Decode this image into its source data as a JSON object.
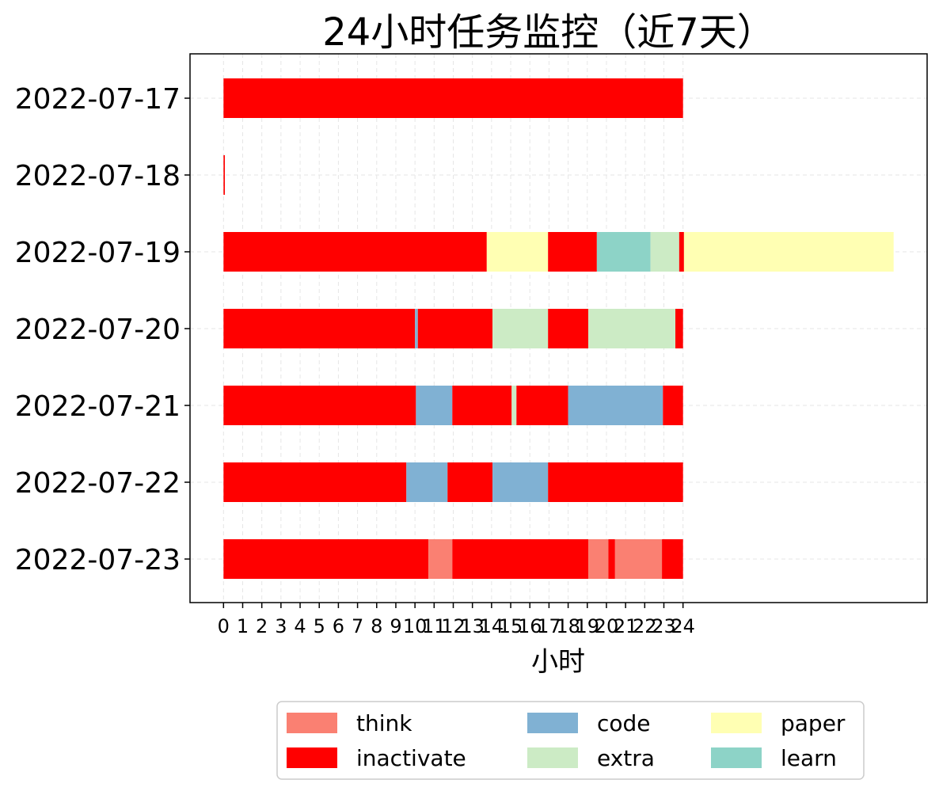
{
  "chart_data": {
    "type": "bar",
    "orientation": "horizontal-stacked",
    "title": "24小时任务监控（近7天）",
    "xlabel": "小时",
    "ylabel": "",
    "xlim": [
      -1.75,
      36.75
    ],
    "xticks": [
      0,
      1,
      2,
      3,
      4,
      5,
      6,
      7,
      8,
      9,
      10,
      11,
      12,
      13,
      14,
      15,
      16,
      17,
      18,
      19,
      20,
      21,
      22,
      23,
      24
    ],
    "grid": true,
    "legend_position": "bottom-center, 3 columns",
    "categories": [
      "2022-07-17",
      "2022-07-18",
      "2022-07-19",
      "2022-07-20",
      "2022-07-21",
      "2022-07-22",
      "2022-07-23"
    ],
    "legend": [
      {
        "name": "think",
        "color": "#fa8072"
      },
      {
        "name": "code",
        "color": "#80b1d3"
      },
      {
        "name": "paper",
        "color": "#ffffb3"
      },
      {
        "name": "inactivate",
        "color": "#ff0000"
      },
      {
        "name": "extra",
        "color": "#ccebc5"
      },
      {
        "name": "learn",
        "color": "#8dd3c7"
      }
    ],
    "rows": [
      {
        "date": "2022-07-17",
        "segments": [
          {
            "type": "inactivate",
            "start": 0,
            "end": 24
          }
        ]
      },
      {
        "date": "2022-07-18",
        "segments": [
          {
            "type": "inactivate",
            "start": 0,
            "end": 0.07
          }
        ]
      },
      {
        "date": "2022-07-19",
        "segments": [
          {
            "type": "inactivate",
            "start": 0,
            "end": 13.75
          },
          {
            "type": "paper",
            "start": 13.75,
            "end": 16.95
          },
          {
            "type": "inactivate",
            "start": 16.95,
            "end": 19.5
          },
          {
            "type": "learn",
            "start": 19.5,
            "end": 22.3
          },
          {
            "type": "extra",
            "start": 22.3,
            "end": 23.8
          },
          {
            "type": "inactivate",
            "start": 23.8,
            "end": 24.05
          },
          {
            "type": "paper",
            "start": 24.05,
            "end": 35.0
          }
        ]
      },
      {
        "date": "2022-07-20",
        "segments": [
          {
            "type": "inactivate",
            "start": 0,
            "end": 10.0
          },
          {
            "type": "code",
            "start": 10.0,
            "end": 10.15
          },
          {
            "type": "inactivate",
            "start": 10.15,
            "end": 14.05
          },
          {
            "type": "extra",
            "start": 14.05,
            "end": 16.95
          },
          {
            "type": "inactivate",
            "start": 16.95,
            "end": 19.05
          },
          {
            "type": "extra",
            "start": 19.05,
            "end": 23.6
          },
          {
            "type": "inactivate",
            "start": 23.6,
            "end": 24
          }
        ]
      },
      {
        "date": "2022-07-21",
        "segments": [
          {
            "type": "inactivate",
            "start": 0,
            "end": 10.05
          },
          {
            "type": "code",
            "start": 10.05,
            "end": 11.95
          },
          {
            "type": "inactivate",
            "start": 11.95,
            "end": 15.05
          },
          {
            "type": "extra",
            "start": 15.05,
            "end": 15.3
          },
          {
            "type": "inactivate",
            "start": 15.3,
            "end": 18.0
          },
          {
            "type": "code",
            "start": 18.0,
            "end": 22.95
          },
          {
            "type": "inactivate",
            "start": 22.95,
            "end": 24
          }
        ]
      },
      {
        "date": "2022-07-22",
        "segments": [
          {
            "type": "inactivate",
            "start": 0,
            "end": 9.55
          },
          {
            "type": "code",
            "start": 9.55,
            "end": 11.7
          },
          {
            "type": "inactivate",
            "start": 11.7,
            "end": 14.05
          },
          {
            "type": "code",
            "start": 14.05,
            "end": 16.95
          },
          {
            "type": "inactivate",
            "start": 16.95,
            "end": 24
          }
        ]
      },
      {
        "date": "2022-07-23",
        "segments": [
          {
            "type": "inactivate",
            "start": 0,
            "end": 10.7
          },
          {
            "type": "think",
            "start": 10.7,
            "end": 11.95
          },
          {
            "type": "inactivate",
            "start": 11.95,
            "end": 19.05
          },
          {
            "type": "think",
            "start": 19.05,
            "end": 20.1
          },
          {
            "type": "inactivate",
            "start": 20.1,
            "end": 20.45
          },
          {
            "type": "think",
            "start": 20.45,
            "end": 22.9
          },
          {
            "type": "inactivate",
            "start": 22.9,
            "end": 24
          }
        ]
      }
    ]
  }
}
